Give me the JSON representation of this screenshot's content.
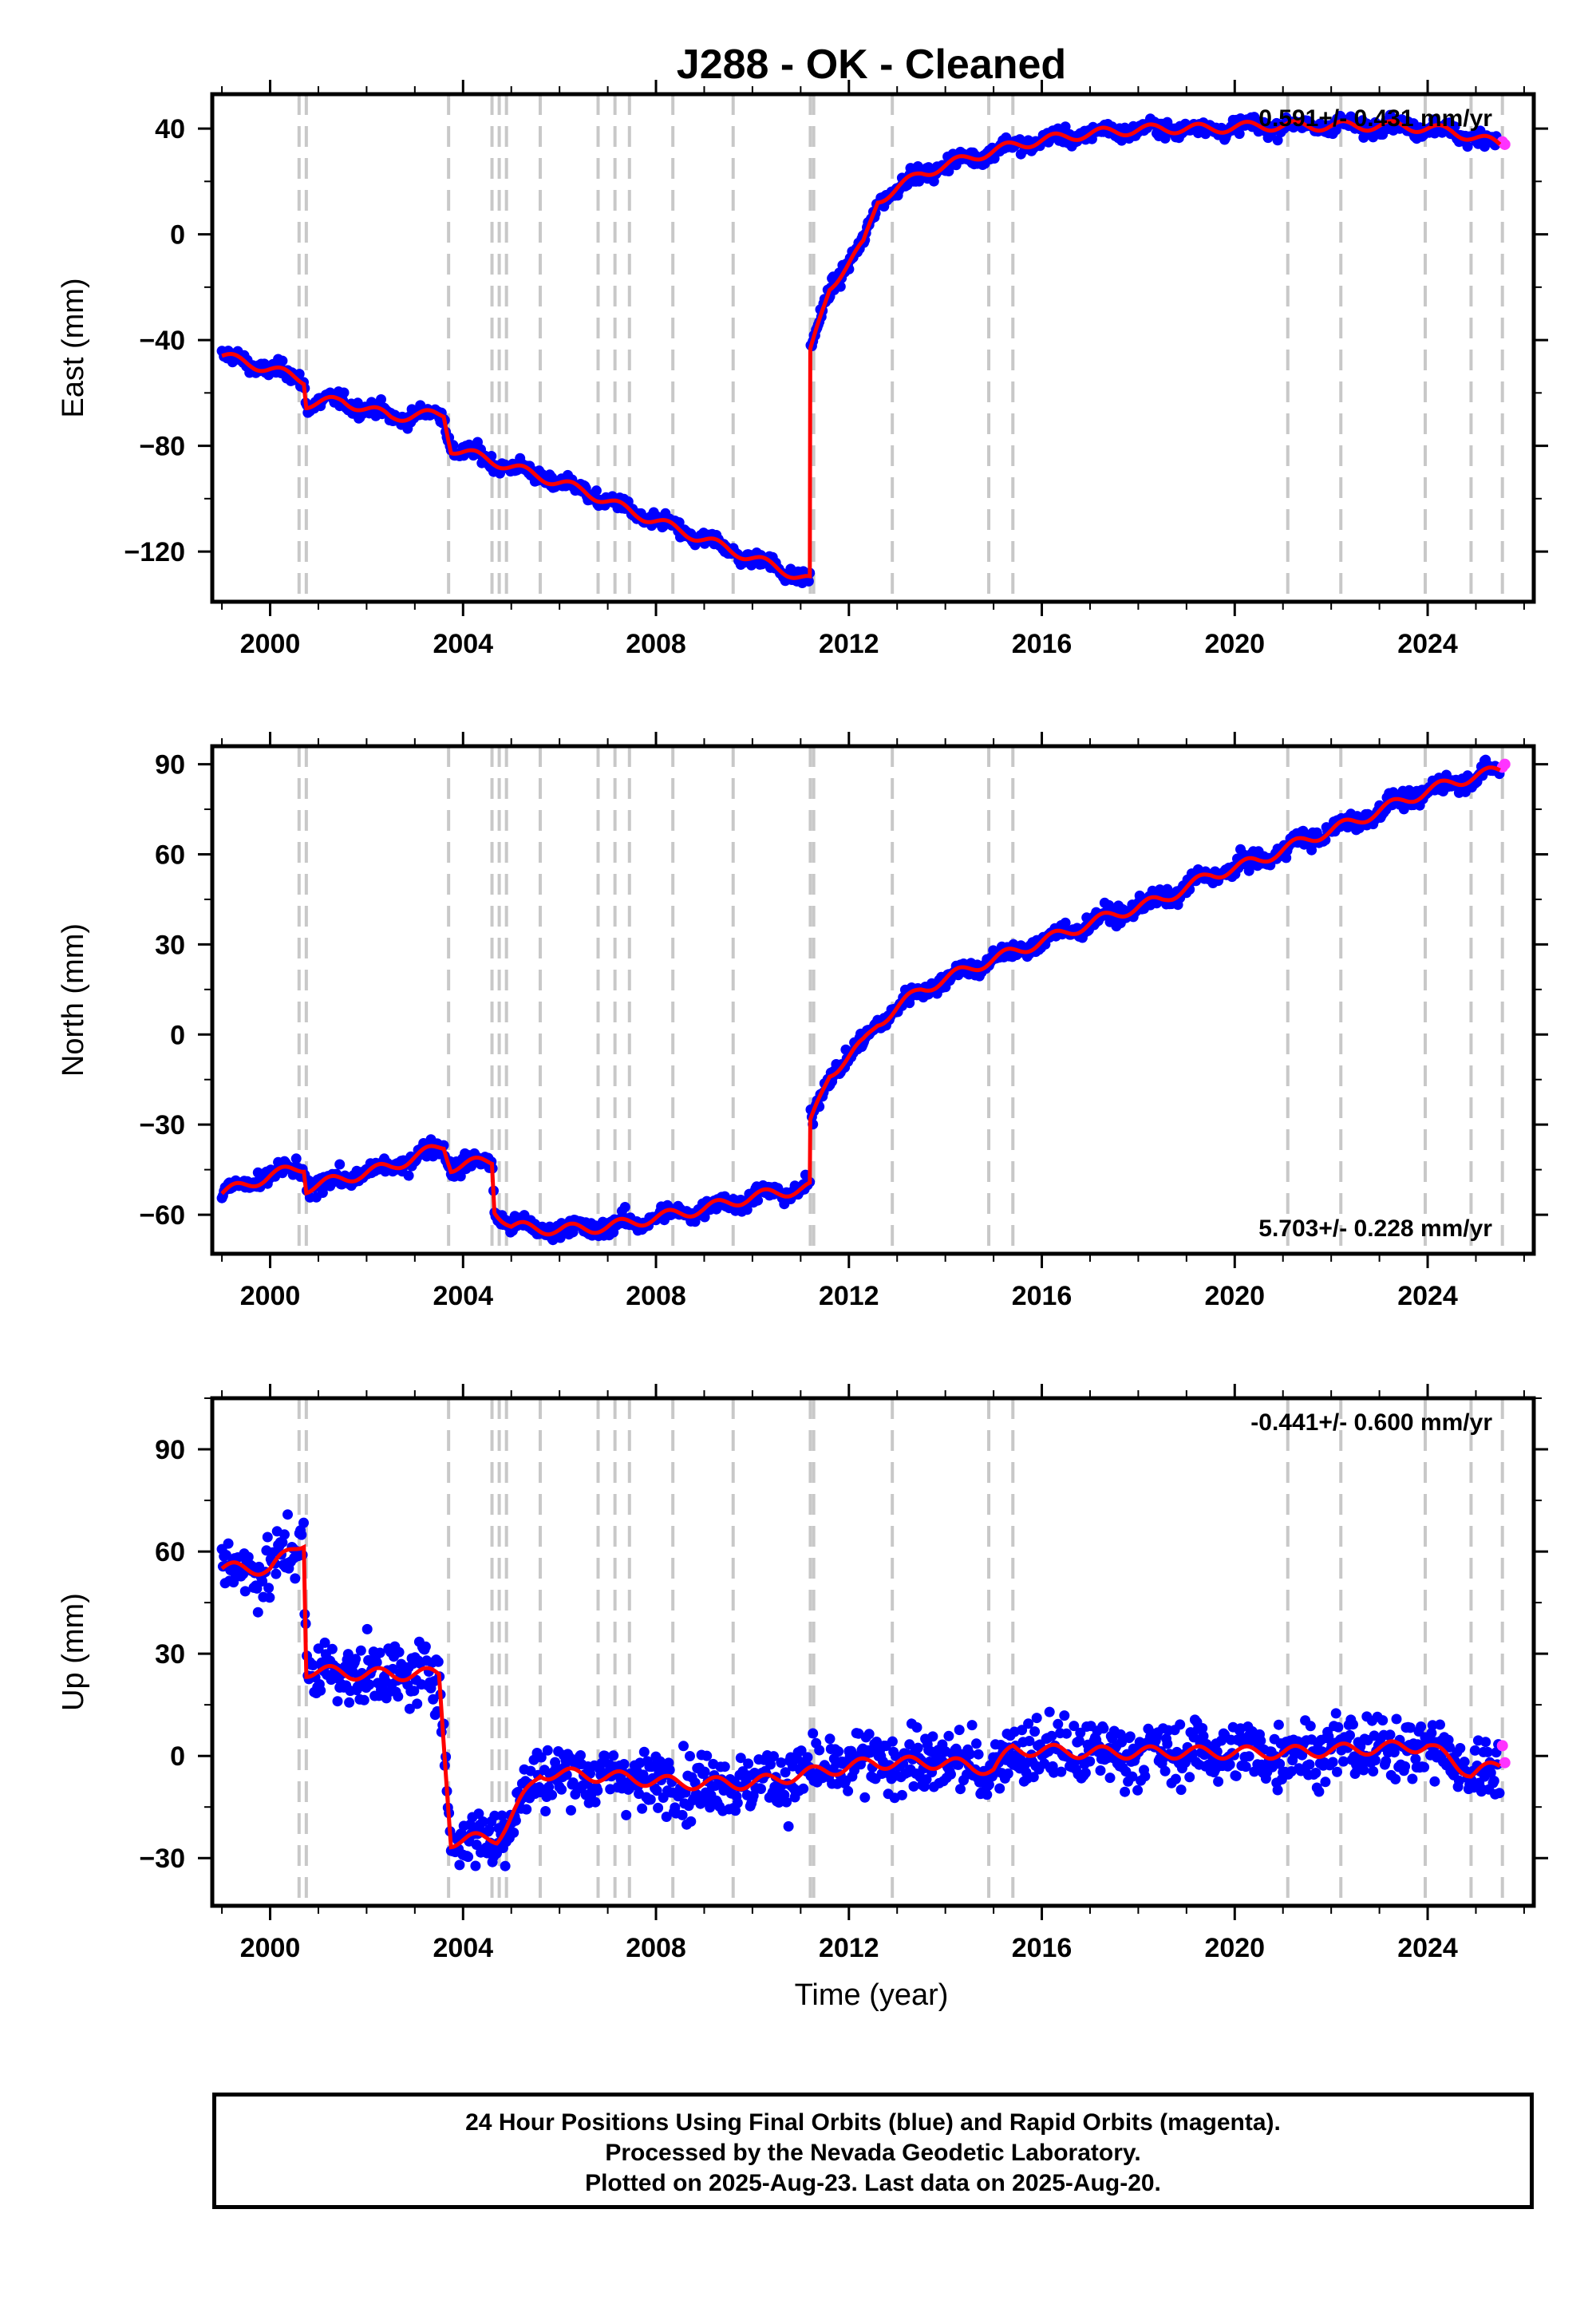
{
  "title": "J288  - OK - Cleaned",
  "xlabel": "Time (year)",
  "footer": {
    "line1": "24 Hour Positions Using Final Orbits (blue) and Rapid Orbits (magenta).",
    "line2": "Processed by the Nevada Geodetic Laboratory.",
    "line3": "Plotted on 2025-Aug-23. Last data on 2025-Aug-20."
  },
  "colors": {
    "final": "#0000ff",
    "rapid": "#ff33ff",
    "model": "#ff0000",
    "steps": "#c8c8c8"
  },
  "chart_data": [
    {
      "type": "scatter",
      "ylabel": "East (mm)",
      "rate_text": "0.591+/- 0.431 mm/yr",
      "rate_position": "top-right",
      "xlim": [
        1998.8,
        2026.2
      ],
      "ylim": [
        -139,
        53
      ],
      "xticks": [
        2000,
        2004,
        2008,
        2012,
        2016,
        2020,
        2024
      ],
      "yticks": [
        -120,
        -80,
        -40,
        0,
        40
      ],
      "steps": [
        2000.6,
        2000.75,
        2003.7,
        2004.6,
        2004.75,
        2004.9,
        2005.6,
        2006.8,
        2007.15,
        2007.45,
        2008.35,
        2009.6,
        2011.2,
        2011.27,
        2012.9,
        2014.9,
        2015.4,
        2021.1,
        2022.2,
        2023.95,
        2024.9,
        2025.55
      ],
      "series": [
        {
          "name": "Final Orbits",
          "values": [
            [
              1999.0,
              -46
            ],
            [
              2000.0,
              -51
            ],
            [
              2000.7,
              -55
            ],
            [
              2000.75,
              -64
            ],
            [
              2001.5,
              -63
            ],
            [
              2002.5,
              -69
            ],
            [
              2003.6,
              -68
            ],
            [
              2003.75,
              -81
            ],
            [
              2004.5,
              -85
            ],
            [
              2005.5,
              -91
            ],
            [
              2006.5,
              -97
            ],
            [
              2007.5,
              -105
            ],
            [
              2008.5,
              -112
            ],
            [
              2009.5,
              -119
            ],
            [
              2010.5,
              -126
            ],
            [
              2011.19,
              -131
            ],
            [
              2011.2,
              -45
            ],
            [
              2011.6,
              -20
            ],
            [
              2012.3,
              -4
            ],
            [
              2012.6,
              13
            ],
            [
              2013.5,
              23
            ],
            [
              2014.5,
              29
            ],
            [
              2015.5,
              34
            ],
            [
              2016.5,
              37
            ],
            [
              2017.5,
              39
            ],
            [
              2018.5,
              40
            ],
            [
              2019.5,
              40
            ],
            [
              2020.5,
              41
            ],
            [
              2021.5,
              41
            ],
            [
              2022.5,
              41
            ],
            [
              2023.5,
              41
            ],
            [
              2024.5,
              39
            ],
            [
              2025.5,
              34
            ]
          ]
        },
        {
          "name": "Rapid Orbits",
          "values": [
            [
              2025.55,
              35
            ],
            [
              2025.6,
              34
            ]
          ]
        }
      ]
    },
    {
      "type": "scatter",
      "ylabel": "North (mm)",
      "rate_text": "5.703+/- 0.228 mm/yr",
      "rate_position": "bottom-right",
      "xlim": [
        1998.8,
        2026.2
      ],
      "ylim": [
        -73,
        96
      ],
      "xticks": [
        2000,
        2004,
        2008,
        2012,
        2016,
        2020,
        2024
      ],
      "yticks": [
        -60,
        -30,
        0,
        30,
        60,
        90
      ],
      "steps": [
        2000.6,
        2000.75,
        2003.7,
        2004.6,
        2004.75,
        2004.9,
        2005.6,
        2006.8,
        2007.15,
        2007.45,
        2008.35,
        2009.6,
        2011.2,
        2011.27,
        2012.9,
        2014.9,
        2015.4,
        2021.1,
        2022.2,
        2023.95,
        2024.9,
        2025.55
      ],
      "series": [
        {
          "name": "Final Orbits",
          "values": [
            [
              1999.0,
              -53
            ],
            [
              2000.0,
              -47
            ],
            [
              2000.7,
              -44
            ],
            [
              2000.75,
              -51
            ],
            [
              2001.5,
              -48
            ],
            [
              2002.5,
              -44
            ],
            [
              2003.6,
              -37
            ],
            [
              2003.75,
              -44
            ],
            [
              2004.6,
              -42
            ],
            [
              2004.65,
              -58
            ],
            [
              2005.0,
              -64
            ],
            [
              2006.0,
              -65
            ],
            [
              2007.0,
              -64
            ],
            [
              2008.0,
              -61
            ],
            [
              2009.0,
              -58
            ],
            [
              2010.0,
              -54
            ],
            [
              2011.19,
              -51
            ],
            [
              2011.2,
              -30
            ],
            [
              2011.6,
              -13
            ],
            [
              2012.3,
              -3
            ],
            [
              2012.6,
              4
            ],
            [
              2013.5,
              15
            ],
            [
              2014.5,
              22
            ],
            [
              2015.5,
              28
            ],
            [
              2016.5,
              34
            ],
            [
              2017.5,
              40
            ],
            [
              2018.5,
              45
            ],
            [
              2019.5,
              53
            ],
            [
              2020.5,
              58
            ],
            [
              2021.5,
              65
            ],
            [
              2022.5,
              71
            ],
            [
              2023.5,
              78
            ],
            [
              2024.5,
              84
            ],
            [
              2025.5,
              88
            ]
          ]
        },
        {
          "name": "Rapid Orbits",
          "values": [
            [
              2025.55,
              89
            ],
            [
              2025.6,
              90
            ]
          ]
        }
      ]
    },
    {
      "type": "scatter",
      "ylabel": "Up (mm)",
      "rate_text": "-0.441+/- 0.600 mm/yr",
      "rate_position": "top-right",
      "xlim": [
        1998.8,
        2026.2
      ],
      "ylim": [
        -44,
        105
      ],
      "xticks": [
        2000,
        2004,
        2008,
        2012,
        2016,
        2020,
        2024
      ],
      "yticks": [
        -30,
        0,
        30,
        60,
        90
      ],
      "steps": [
        2000.6,
        2000.75,
        2003.7,
        2004.6,
        2004.75,
        2004.9,
        2005.6,
        2006.8,
        2007.15,
        2007.45,
        2008.35,
        2009.6,
        2011.2,
        2011.27,
        2012.9,
        2014.9,
        2015.4,
        2021.1,
        2022.2,
        2023.95,
        2024.9,
        2025.55
      ],
      "series": [
        {
          "name": "Final Orbits",
          "values": [
            [
              1999.0,
              55
            ],
            [
              2000.0,
              55
            ],
            [
              2000.7,
              63
            ],
            [
              2000.75,
              25
            ],
            [
              2002.0,
              24
            ],
            [
              2003.5,
              24
            ],
            [
              2003.75,
              -25
            ],
            [
              2004.7,
              -24
            ],
            [
              2004.9,
              -20
            ],
            [
              2005.6,
              -5
            ],
            [
              2007.0,
              -6
            ],
            [
              2008.5,
              -8
            ],
            [
              2010.0,
              -8
            ],
            [
              2011.2,
              -5
            ],
            [
              2012.5,
              -2
            ],
            [
              2014.0,
              -2
            ],
            [
              2015.0,
              -4
            ],
            [
              2015.4,
              2
            ],
            [
              2017.0,
              1
            ],
            [
              2019.0,
              1
            ],
            [
              2021.0,
              1
            ],
            [
              2022.5,
              2
            ],
            [
              2024.0,
              3
            ],
            [
              2024.9,
              -5
            ],
            [
              2025.5,
              -3
            ]
          ]
        },
        {
          "name": "Rapid Orbits",
          "values": [
            [
              2025.55,
              3
            ],
            [
              2025.6,
              -2
            ]
          ]
        }
      ]
    }
  ]
}
